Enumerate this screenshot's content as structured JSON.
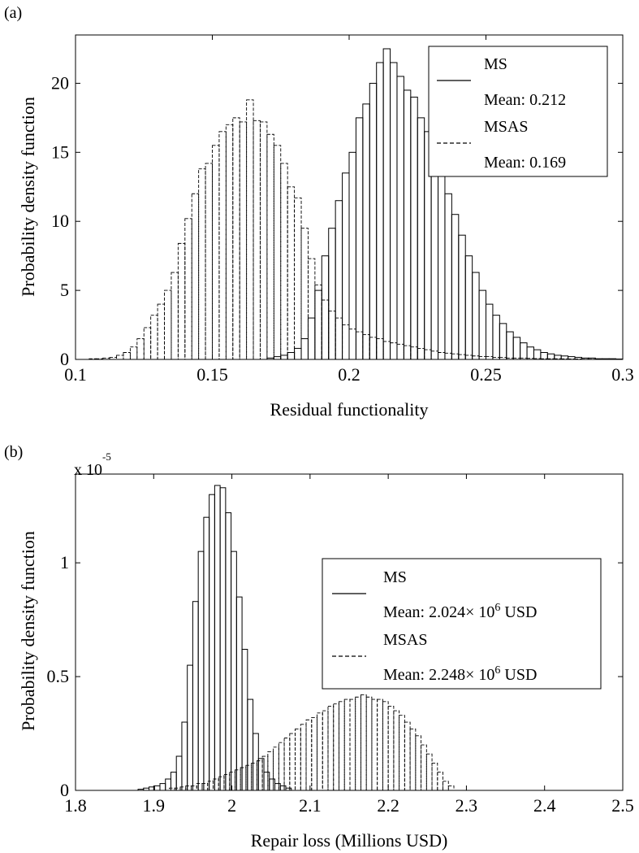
{
  "chart_data": [
    {
      "panel_label": "(a)",
      "type": "histogram",
      "xlabel": "Residual functionality",
      "ylabel": "Probability density function",
      "xlim": [
        0.1,
        0.3
      ],
      "ylim": [
        0,
        23.5
      ],
      "xticks": [
        "0.1",
        "0.15",
        "0.2",
        "0.25",
        "0.3"
      ],
      "yticks": [
        "0",
        "5",
        "10",
        "15",
        "20"
      ],
      "legend_position": "top-right",
      "legend_entries": [
        {
          "name": "MS",
          "detail": "Mean: 0.212"
        },
        {
          "name": "MSAS",
          "detail": "Mean: 0.169"
        }
      ],
      "bin_width": 0.0025,
      "series": [
        {
          "name": "MS",
          "line_style": "solid",
          "x_start": 0.17,
          "values": [
            0.1,
            0.2,
            0.3,
            0.5,
            0.8,
            1.5,
            3,
            5,
            7.5,
            9.5,
            11.5,
            13.5,
            15,
            17.5,
            18.5,
            20,
            21.5,
            22.5,
            21.5,
            20.5,
            19.5,
            19,
            17.5,
            16.5,
            15,
            13.5,
            12,
            10.5,
            9,
            7.5,
            6.3,
            5,
            4,
            3.2,
            2.6,
            2,
            1.6,
            1.2,
            0.9,
            0.7,
            0.5,
            0.4,
            0.3,
            0.25,
            0.2,
            0.15,
            0.1,
            0.1,
            0.05,
            0.05,
            0.05,
            0.03
          ]
        },
        {
          "name": "MSAS",
          "line_style": "dashed",
          "x_start": 0.105,
          "values": [
            0.05,
            0.05,
            0.1,
            0.15,
            0.3,
            0.5,
            0.9,
            1.5,
            2.3,
            3.2,
            4,
            5,
            6.3,
            8.4,
            10.2,
            12,
            13.8,
            14.2,
            15.5,
            16.5,
            17,
            17.5,
            17.2,
            18.8,
            17.3,
            17.2,
            16.3,
            15.5,
            14.2,
            12.5,
            11.7,
            9.5,
            7.3,
            5.4,
            4.3,
            3.5,
            3,
            2.5,
            2.2,
            2,
            1.8,
            1.6,
            1.5,
            1.3,
            1.2,
            1.1,
            1,
            0.9,
            0.8,
            0.7,
            0.6,
            0.5,
            0.45,
            0.4,
            0.35,
            0.3,
            0.25,
            0.2,
            0.2,
            0.15,
            0.15,
            0.1,
            0.1,
            0.1,
            0.08,
            0.06,
            0.05,
            0.05,
            0.05,
            0.04,
            0.03,
            0.03,
            0.02,
            0.02,
            0.02,
            0.01,
            0.01,
            0.01
          ]
        }
      ]
    },
    {
      "panel_label": "(b)",
      "type": "histogram",
      "xlabel": "Repair loss (Millions USD)",
      "ylabel": "Probability density function",
      "y_multiplier": "x 10",
      "y_multiplier_exp": "-5",
      "xlim": [
        1.8,
        2.5
      ],
      "ylim": [
        0,
        1.39
      ],
      "xticks": [
        "1.8",
        "1.9",
        "2",
        "2.1",
        "2.2",
        "2.3",
        "2.4",
        "2.5"
      ],
      "yticks": [
        "0",
        "0.5",
        "1"
      ],
      "legend_position": "center-right",
      "legend_entries": [
        {
          "name": "MS",
          "detail": "Mean: 2.024× 10",
          "detail_sup": "6",
          "detail_unit": " USD"
        },
        {
          "name": "MSAS",
          "detail": "Mean: 2.248× 10",
          "detail_sup": "6",
          "detail_unit": " USD"
        }
      ],
      "bin_width": 0.007,
      "series": [
        {
          "name": "MS",
          "line_style": "solid",
          "x_start": 1.88,
          "values": [
            0.005,
            0.01,
            0.015,
            0.02,
            0.03,
            0.05,
            0.08,
            0.15,
            0.3,
            0.55,
            0.83,
            1.05,
            1.2,
            1.3,
            1.34,
            1.33,
            1.22,
            1.05,
            0.85,
            0.62,
            0.4,
            0.25,
            0.14,
            0.08,
            0.05,
            0.03,
            0.02,
            0.01
          ]
        },
        {
          "name": "MSAS",
          "line_style": "dashed",
          "x_start": 1.92,
          "values": [
            0.01,
            0.01,
            0.015,
            0.02,
            0.02,
            0.03,
            0.03,
            0.04,
            0.05,
            0.06,
            0.07,
            0.08,
            0.09,
            0.1,
            0.11,
            0.12,
            0.13,
            0.15,
            0.17,
            0.19,
            0.21,
            0.23,
            0.25,
            0.27,
            0.29,
            0.31,
            0.32,
            0.34,
            0.35,
            0.37,
            0.38,
            0.39,
            0.4,
            0.4,
            0.41,
            0.42,
            0.41,
            0.4,
            0.4,
            0.39,
            0.37,
            0.35,
            0.33,
            0.3,
            0.27,
            0.24,
            0.2,
            0.16,
            0.12,
            0.08,
            0.04,
            0.02
          ]
        }
      ]
    }
  ]
}
